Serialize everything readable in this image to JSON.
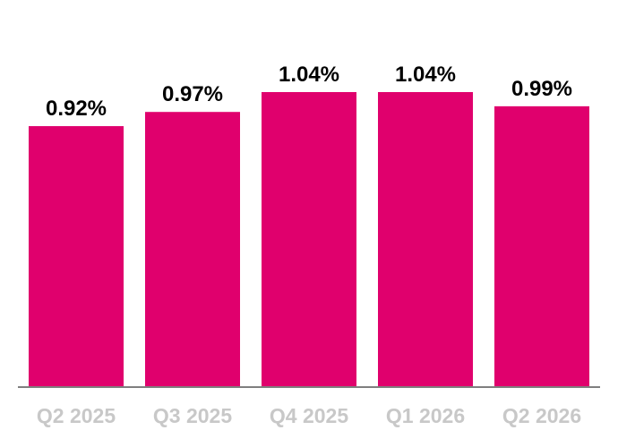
{
  "chart_data": {
    "type": "bar",
    "categories": [
      "Q2 2025",
      "Q3 2025",
      "Q4 2025",
      "Q1 2026",
      "Q2 2026"
    ],
    "values": [
      0.92,
      0.97,
      1.04,
      1.04,
      0.99
    ],
    "value_labels": [
      "0.92%",
      "0.97%",
      "1.04%",
      "1.04%",
      "0.99%"
    ],
    "title": "",
    "xlabel": "",
    "ylabel": "",
    "ylim": [
      0,
      1.04
    ],
    "grid": false,
    "legend": "none",
    "colors": {
      "bar": "#e0006d",
      "axis": "#7f7f7f",
      "value_label": "#000000",
      "category_label": "#c8c8c8"
    }
  }
}
